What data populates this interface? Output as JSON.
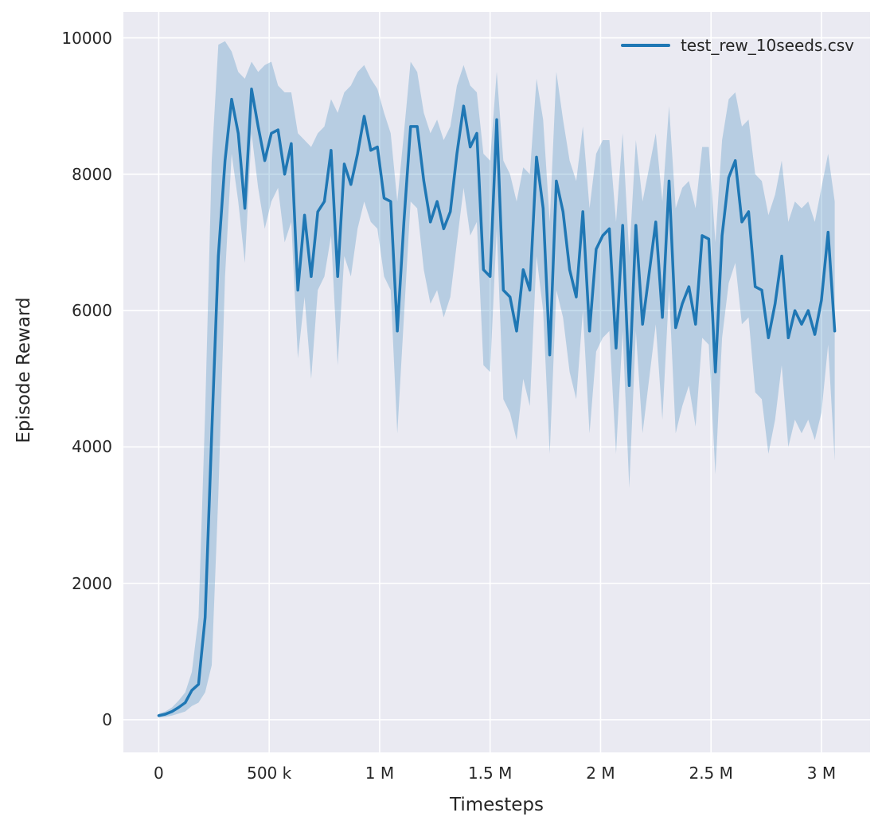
{
  "chart_data": {
    "type": "line",
    "title": "",
    "xlabel": "Timesteps",
    "ylabel": "Episode Reward",
    "legend": [
      "test_rew_10seeds.csv"
    ],
    "legend_position": "upper right",
    "grid": true,
    "xlim": [
      -160000,
      3220000
    ],
    "ylim": [
      -480,
      10380
    ],
    "x_ticks": [
      {
        "value": 0,
        "label": "0"
      },
      {
        "value": 500000,
        "label": "500 k"
      },
      {
        "value": 1000000,
        "label": "1 M"
      },
      {
        "value": 1500000,
        "label": "1.5 M"
      },
      {
        "value": 2000000,
        "label": "2 M"
      },
      {
        "value": 2500000,
        "label": "2.5 M"
      },
      {
        "value": 3000000,
        "label": "3 M"
      }
    ],
    "y_ticks": [
      {
        "value": 0,
        "label": "0"
      },
      {
        "value": 2000,
        "label": "2000"
      },
      {
        "value": 4000,
        "label": "4000"
      },
      {
        "value": 6000,
        "label": "6000"
      },
      {
        "value": 8000,
        "label": "8000"
      },
      {
        "value": 10000,
        "label": "10000"
      }
    ],
    "colors": {
      "line": "#1f77b4",
      "band_alpha": 0.25,
      "axes_bg": "#eaeaf2",
      "grid": "#ffffff",
      "text": "#262626"
    },
    "series": [
      {
        "name": "test_rew_10seeds.csv",
        "x": [
          0,
          30000,
          60000,
          90000,
          120000,
          150000,
          180000,
          210000,
          240000,
          270000,
          300000,
          330000,
          360000,
          390000,
          420000,
          450000,
          480000,
          510000,
          540000,
          570000,
          600000,
          630000,
          660000,
          690000,
          720000,
          750000,
          780000,
          810000,
          840000,
          870000,
          900000,
          930000,
          960000,
          990000,
          1020000,
          1050000,
          1080000,
          1110000,
          1140000,
          1170000,
          1200000,
          1230000,
          1260000,
          1290000,
          1320000,
          1350000,
          1380000,
          1410000,
          1440000,
          1470000,
          1500000,
          1530000,
          1560000,
          1590000,
          1620000,
          1650000,
          1680000,
          1710000,
          1740000,
          1770000,
          1800000,
          1830000,
          1860000,
          1890000,
          1920000,
          1950000,
          1980000,
          2010000,
          2040000,
          2070000,
          2100000,
          2130000,
          2160000,
          2190000,
          2220000,
          2250000,
          2280000,
          2310000,
          2340000,
          2370000,
          2400000,
          2430000,
          2460000,
          2490000,
          2520000,
          2550000,
          2580000,
          2610000,
          2640000,
          2670000,
          2700000,
          2730000,
          2760000,
          2790000,
          2820000,
          2850000,
          2880000,
          2910000,
          2940000,
          2970000,
          3000000,
          3030000,
          3060000
        ],
        "mean": [
          60,
          80,
          120,
          180,
          250,
          430,
          520,
          1500,
          4200,
          6800,
          8200,
          9100,
          8600,
          7500,
          9250,
          8700,
          8200,
          8600,
          8650,
          8000,
          8450,
          6300,
          7400,
          6500,
          7450,
          7600,
          8350,
          6500,
          8150,
          7850,
          8300,
          8850,
          8350,
          8400,
          7650,
          7600,
          5700,
          7300,
          8700,
          8700,
          7900,
          7300,
          7600,
          7200,
          7450,
          8300,
          9000,
          8400,
          8600,
          6600,
          6500,
          8800,
          6300,
          6200,
          5700,
          6600,
          6300,
          8250,
          7500,
          5350,
          7900,
          7450,
          6600,
          6200,
          7450,
          5700,
          6900,
          7100,
          7200,
          5450,
          7250,
          4900,
          7250,
          5800,
          6550,
          7300,
          5900,
          7900,
          5750,
          6100,
          6350,
          5800,
          7100,
          7050,
          5100,
          7100,
          7950,
          8200,
          7300,
          7450,
          6350,
          6300,
          5600,
          6100,
          6800,
          5600,
          6000,
          5800,
          6000,
          5650,
          6150,
          7150,
          5700
        ],
        "band_lo": [
          30,
          40,
          60,
          90,
          120,
          200,
          250,
          400,
          800,
          3300,
          6500,
          8300,
          7600,
          6700,
          8600,
          7800,
          7200,
          7600,
          7800,
          7000,
          7300,
          5300,
          6200,
          5000,
          6300,
          6500,
          7100,
          5200,
          6800,
          6500,
          7200,
          7600,
          7300,
          7200,
          6500,
          6300,
          4200,
          5900,
          7600,
          7500,
          6600,
          6100,
          6300,
          5900,
          6200,
          7000,
          7800,
          7100,
          7300,
          5200,
          5100,
          7200,
          4700,
          4500,
          4100,
          5000,
          4600,
          6800,
          6000,
          3900,
          6300,
          5900,
          5100,
          4700,
          6000,
          4200,
          5400,
          5600,
          5700,
          3900,
          5700,
          3400,
          5700,
          4200,
          5000,
          5800,
          4400,
          6300,
          4200,
          4600,
          4900,
          4300,
          5600,
          5500,
          3600,
          5600,
          6400,
          6700,
          5800,
          5900,
          4800,
          4700,
          3900,
          4400,
          5200,
          4000,
          4400,
          4200,
          4400,
          4100,
          4500,
          5500,
          3800
        ],
        "band_hi": [
          90,
          120,
          180,
          280,
          400,
          700,
          1500,
          4500,
          8200,
          9900,
          9950,
          9800,
          9500,
          9400,
          9650,
          9500,
          9600,
          9650,
          9300,
          9200,
          9200,
          8600,
          8500,
          8400,
          8600,
          8700,
          9100,
          8900,
          9200,
          9300,
          9500,
          9600,
          9400,
          9250,
          8900,
          8600,
          7600,
          8600,
          9650,
          9500,
          8900,
          8600,
          8800,
          8500,
          8700,
          9300,
          9600,
          9300,
          9200,
          8300,
          8200,
          9500,
          8200,
          8000,
          7600,
          8100,
          8000,
          9400,
          8800,
          7300,
          9500,
          8800,
          8200,
          7900,
          8700,
          7500,
          8300,
          8500,
          8500,
          7300,
          8600,
          6800,
          8500,
          7600,
          8100,
          8600,
          7600,
          9000,
          7500,
          7800,
          7900,
          7500,
          8400,
          8400,
          7000,
          8500,
          9100,
          9200,
          8700,
          8800,
          8000,
          7900,
          7400,
          7700,
          8200,
          7300,
          7600,
          7500,
          7600,
          7300,
          7800,
          8300,
          7600
        ]
      }
    ]
  }
}
